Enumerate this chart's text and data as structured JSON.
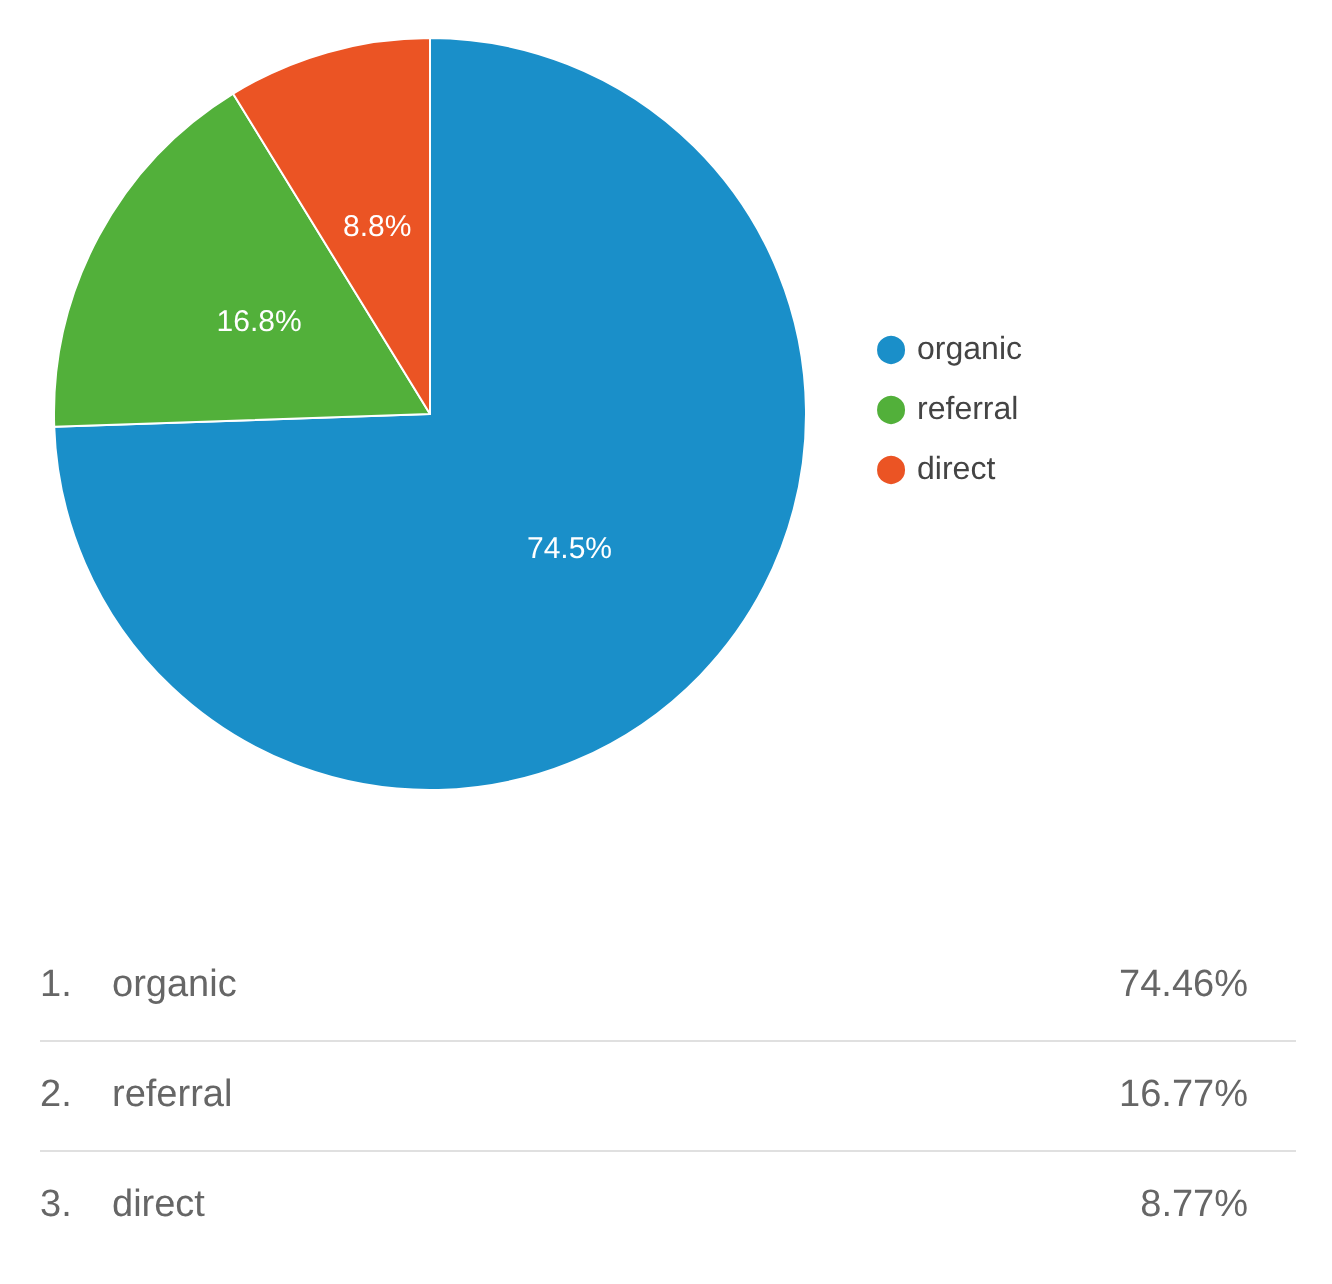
{
  "chart_data": {
    "type": "pie",
    "categories": [
      "organic",
      "referral",
      "direct"
    ],
    "values": [
      74.46,
      16.77,
      8.77
    ],
    "colors": [
      "#1a8fc9",
      "#52b03a",
      "#eb5424"
    ],
    "value_labels": [
      "74.5%",
      "16.8%",
      "8.8%"
    ],
    "annotations": [
      "1.",
      "2.",
      "3.",
      "74.46%",
      "16.77%",
      "8.77%"
    ],
    "legend": "right"
  }
}
